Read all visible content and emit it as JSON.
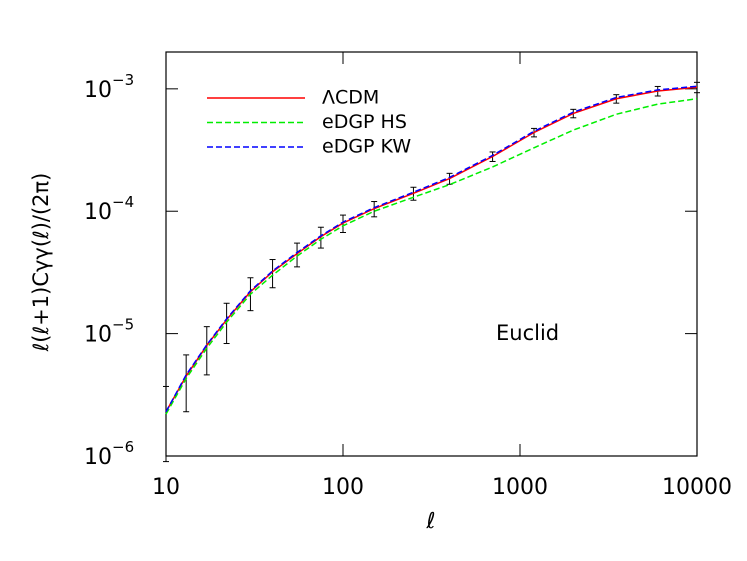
{
  "chart_data": {
    "type": "line",
    "ylabel": "ℓ(ℓ+1)Cγγ(ℓ)/(2π)",
    "xlabel": "ℓ",
    "annotation": "Euclid",
    "log_x": true,
    "log_y": true,
    "xlim": [
      10,
      10000
    ],
    "xticks": [
      10,
      100,
      1000,
      10000
    ],
    "ylim": [
      1e-06,
      0.002
    ],
    "yticks": [
      {
        "value": 1e-06,
        "label": "10",
        "exponent": "−6"
      },
      {
        "value": 1e-05,
        "label": "10",
        "exponent": "−5"
      },
      {
        "value": 0.0001,
        "label": "10",
        "exponent": "−4"
      },
      {
        "value": 0.001,
        "label": "10",
        "exponent": "−3"
      }
    ],
    "legend": "upper-left",
    "x": [
      10,
      13,
      17,
      22,
      30,
      40,
      55,
      75,
      100,
      150,
      250,
      400,
      700,
      1200,
      2000,
      3500,
      6000,
      10000
    ],
    "series": [
      {
        "name": "ΛCDM",
        "color": "#ff0000",
        "dashed": false,
        "values": [
          2.3e-06,
          4.5e-06,
          8e-06,
          1.3e-05,
          2.2e-05,
          3.2e-05,
          4.5e-05,
          6.2e-05,
          8e-05,
          0.000105,
          0.00014,
          0.000185,
          0.00028,
          0.00044,
          0.00063,
          0.00083,
          0.00096,
          0.00103
        ],
        "errors": [
          1.4e-06,
          2.2e-06,
          3.4e-06,
          4.7e-06,
          6.6e-06,
          8.3e-06,
          9.9e-06,
          1.2e-05,
          1.3e-05,
          1.5e-05,
          1.7e-05,
          1.9e-05,
          2.5e-05,
          3.5e-05,
          5e-05,
          6.6e-05,
          8.6e-05,
          0.0001
        ]
      },
      {
        "name": "eDGP HS",
        "color": "#00ee00",
        "dashed": true,
        "values": [
          2.2e-06,
          4.3e-06,
          7.6e-06,
          1.24e-05,
          2.1e-05,
          3e-05,
          4.3e-05,
          5.9e-05,
          7.6e-05,
          0.0001,
          0.00013,
          0.000165,
          0.00023,
          0.00033,
          0.00046,
          0.00062,
          0.00075,
          0.00083
        ]
      },
      {
        "name": "eDGP KW",
        "color": "#0000ff",
        "dashed": true,
        "values": [
          2.3e-06,
          4.6e-06,
          8.1e-06,
          1.32e-05,
          2.24e-05,
          3.25e-05,
          4.6e-05,
          6.3e-05,
          8.15e-05,
          0.000107,
          0.000143,
          0.000189,
          0.000286,
          0.00045,
          0.000645,
          0.00085,
          0.00098,
          0.00105
        ]
      }
    ]
  }
}
